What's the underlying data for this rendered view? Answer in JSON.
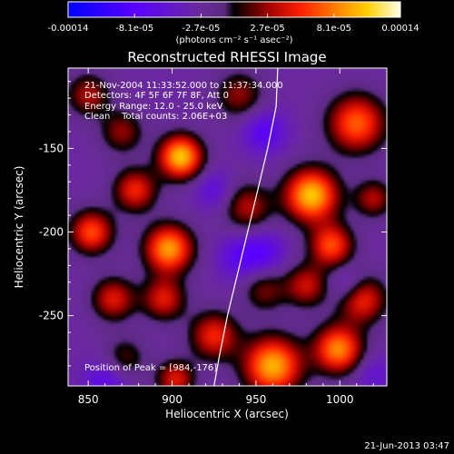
{
  "colorbar": {
    "ticks": [
      "-0.00014",
      "-8.1e-05",
      "-2.7e-05",
      "2.7e-05",
      "8.1e-05",
      "0.00014"
    ],
    "unit_label": "(photons cm⁻² s⁻¹ asec⁻²)"
  },
  "image_title": "Reconstructed RHESSI Image",
  "annotations": {
    "time_range": "21-Nov-2004 11:33:52.000 to 11:37:34.000",
    "detectors": "Detectors: 4F 5F 6F 7F 8F, Att 0",
    "energy_range": "Energy Range: 12.0 - 25.0 keV",
    "clean_counts": "Clean    Total counts: 2.06E+03",
    "peak_position": "Position of Peak = [984,-176]"
  },
  "footer_timestamp": "21-Jun-2013 03:47",
  "chart_data": {
    "type": "heatmap",
    "title": "Reconstructed RHESSI Image",
    "xlabel": "Heliocentric X (arcsec)",
    "ylabel": "Heliocentric Y (arcsec)",
    "xlim": [
      838,
      1028
    ],
    "ylim": [
      -292,
      -102
    ],
    "x_ticks": [
      850,
      900,
      950,
      1000
    ],
    "y_ticks": [
      -150,
      -200,
      -250
    ],
    "color_range": [
      -0.00014,
      0.00014
    ],
    "peak_position": [
      984,
      -176
    ],
    "limb_curve": [
      [
        963,
        -102
      ],
      [
        962,
        -125
      ],
      [
        957,
        -150
      ],
      [
        951,
        -175
      ],
      [
        945,
        -200
      ],
      [
        939,
        -225
      ],
      [
        933,
        -250
      ],
      [
        928,
        -275
      ],
      [
        925,
        -292
      ]
    ],
    "sources": [
      {
        "x": 905,
        "y": -155,
        "intensity": 1.0,
        "sigma": 9
      },
      {
        "x": 983,
        "y": -178,
        "intensity": 1.0,
        "sigma": 11
      },
      {
        "x": 960,
        "y": -280,
        "intensity": 0.95,
        "sigma": 12
      },
      {
        "x": 898,
        "y": -210,
        "intensity": 0.9,
        "sigma": 10
      },
      {
        "x": 999,
        "y": -270,
        "intensity": 0.85,
        "sigma": 10
      },
      {
        "x": 995,
        "y": -208,
        "intensity": 0.7,
        "sigma": 9
      },
      {
        "x": 852,
        "y": -200,
        "intensity": 0.7,
        "sigma": 9
      },
      {
        "x": 878,
        "y": -175,
        "intensity": 0.6,
        "sigma": 9
      },
      {
        "x": 1010,
        "y": -135,
        "intensity": 0.75,
        "sigma": 12
      },
      {
        "x": 1013,
        "y": -240,
        "intensity": 0.65,
        "sigma": 10
      },
      {
        "x": 925,
        "y": -262,
        "intensity": 0.6,
        "sigma": 10
      },
      {
        "x": 865,
        "y": -240,
        "intensity": 0.55,
        "sigma": 9
      },
      {
        "x": 895,
        "y": -240,
        "intensity": 0.55,
        "sigma": 9
      },
      {
        "x": 945,
        "y": -185,
        "intensity": 0.45,
        "sigma": 10
      },
      {
        "x": 980,
        "y": -232,
        "intensity": 0.5,
        "sigma": 9
      },
      {
        "x": 850,
        "y": -118,
        "intensity": 0.45,
        "sigma": 9
      },
      {
        "x": 940,
        "y": -118,
        "intensity": 0.4,
        "sigma": 10
      },
      {
        "x": 955,
        "y": -235,
        "intensity": 0.35,
        "sigma": 9
      },
      {
        "x": 902,
        "y": -288,
        "intensity": 0.55,
        "sigma": 8
      },
      {
        "x": 870,
        "y": -140,
        "intensity": 0.4,
        "sigma": 9
      },
      {
        "x": 1020,
        "y": -180,
        "intensity": 0.45,
        "sigma": 8
      },
      {
        "x": 872,
        "y": -275,
        "intensity": 0.3,
        "sigma": 9
      },
      {
        "x": 955,
        "y": -140,
        "intensity": -0.35,
        "sigma": 9
      },
      {
        "x": 940,
        "y": -215,
        "intensity": -0.3,
        "sigma": 9
      },
      {
        "x": 925,
        "y": -175,
        "intensity": -0.25,
        "sigma": 8
      },
      {
        "x": 955,
        "y": -212,
        "intensity": -0.3,
        "sigma": 9
      },
      {
        "x": 1005,
        "y": -232,
        "intensity": -0.3,
        "sigma": 8
      },
      {
        "x": 860,
        "y": -290,
        "intensity": -0.3,
        "sigma": 9
      },
      {
        "x": 1020,
        "y": -285,
        "intensity": -0.2,
        "sigma": 8
      }
    ]
  }
}
